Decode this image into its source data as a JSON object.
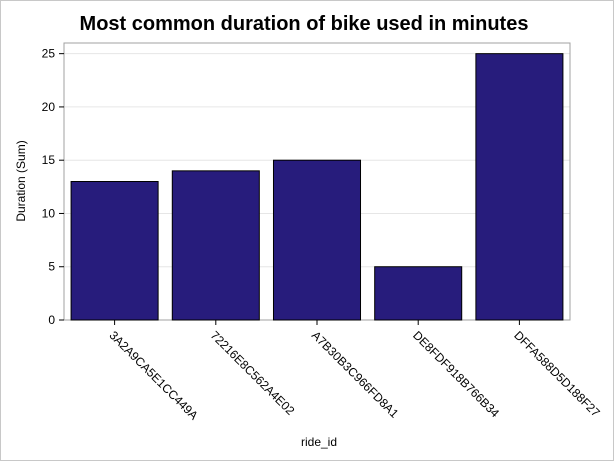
{
  "chart_data": {
    "type": "bar",
    "title": "Most common duration of bike used in minutes",
    "xlabel": "ride_id",
    "ylabel": "Duration (Sum)",
    "categories": [
      "3A2A9CA5E1CC449A",
      "72216E8C562A4E02",
      "A7B30B3C966FD8A1",
      "DE8FDF918B766B34",
      "DFFA588D5D188F27"
    ],
    "values": [
      13,
      14,
      15,
      5,
      25
    ],
    "ylim": [
      0,
      26
    ],
    "yticks": [
      0,
      5,
      10,
      15,
      20,
      25
    ],
    "grid": true,
    "bar_color": "#271c7c",
    "bar_edge_color": "#000000",
    "legend": "none"
  }
}
